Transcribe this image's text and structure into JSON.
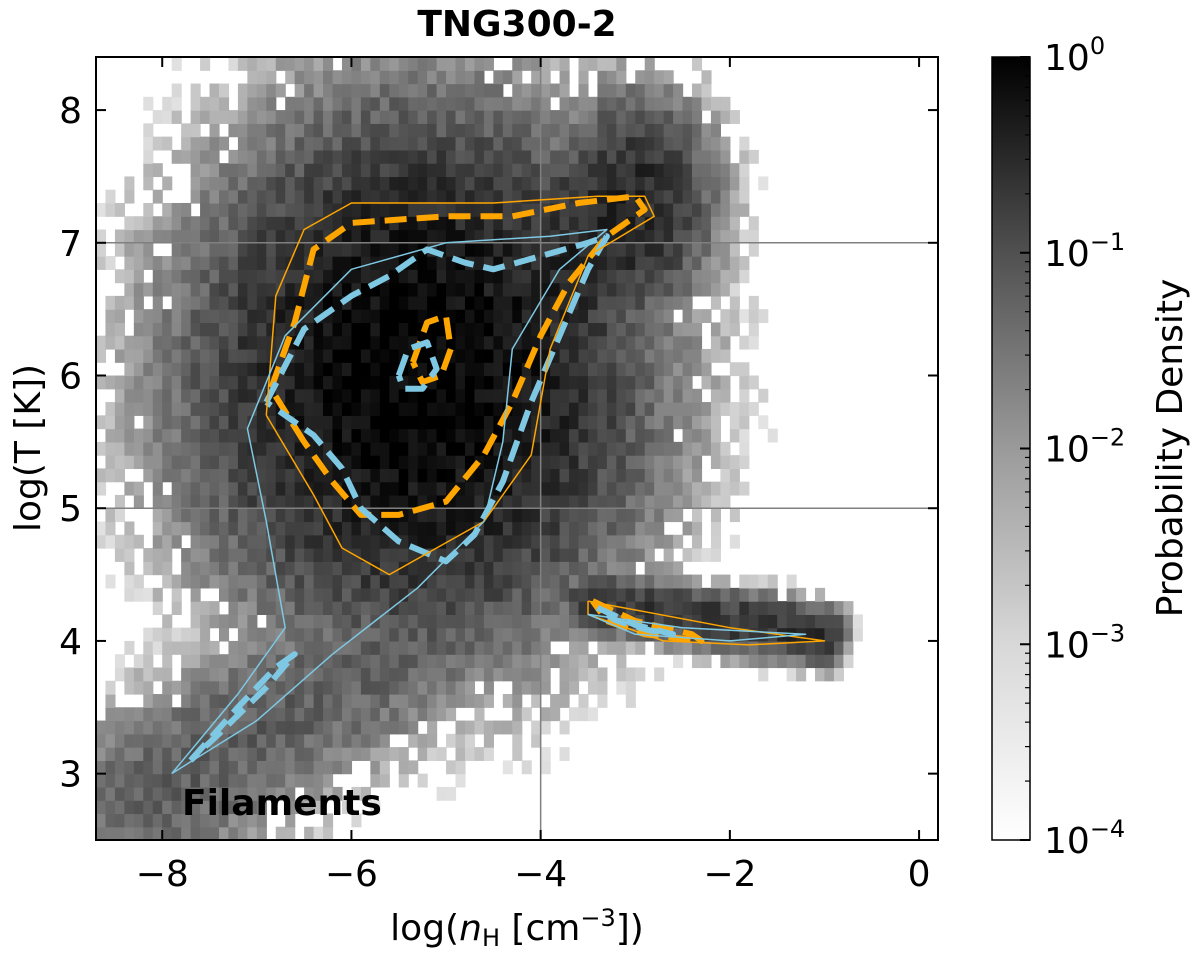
{
  "chart_data": {
    "type": "heatmap",
    "title": "TNG300-2",
    "xlabel": "log(n_H [cm^-3])",
    "ylabel": "log(T [K])",
    "xlim": [
      -8.7,
      0.2
    ],
    "ylim": [
      2.5,
      8.4
    ],
    "x_ticks": [
      -8,
      -6,
      -4,
      -2,
      0
    ],
    "x_tick_labels": [
      "−8",
      "−6",
      "−4",
      "−2",
      "0"
    ],
    "y_ticks": [
      3,
      4,
      5,
      6,
      7,
      8
    ],
    "y_tick_labels": [
      "3",
      "4",
      "5",
      "6",
      "7",
      "8"
    ],
    "reference_lines": {
      "x": [
        -4
      ],
      "y": [
        5,
        7
      ]
    },
    "annotation": "Filaments",
    "colorbar": {
      "label": "Probability Density",
      "scale": "log",
      "range": [
        0.0001,
        1
      ],
      "ticks": [
        {
          "value": 1,
          "base": "10",
          "exp": "0"
        },
        {
          "value": 0.1,
          "base": "10",
          "exp": "−1"
        },
        {
          "value": 0.01,
          "base": "10",
          "exp": "−2"
        },
        {
          "value": 0.001,
          "base": "10",
          "exp": "−3"
        },
        {
          "value": 0.0001,
          "base": "10",
          "exp": "−4"
        }
      ]
    },
    "heatmap": {
      "description": "2D histogram of gas phase density; bin size 0.1 dex in x and y",
      "bin_size": 0.1,
      "components": [
        {
          "name": "hot-core",
          "center": [
            -5.3,
            6.0
          ],
          "spread": [
            0.9,
            0.75
          ],
          "peak": 1.0
        },
        {
          "name": "whim-arm",
          "from": [
            -6.0,
            5.2
          ],
          "to": [
            -3.0,
            7.3
          ],
          "width": 0.35,
          "peak": 0.25
        },
        {
          "name": "upper-band",
          "from": [
            -6.3,
            7.1
          ],
          "to": [
            -3.0,
            7.3
          ],
          "width": 0.2,
          "peak": 0.12
        },
        {
          "name": "cool-diffuse-arm",
          "from": [
            -8.2,
            2.8
          ],
          "to": [
            -4.2,
            4.6
          ],
          "width": 0.35,
          "peak": 0.03
        },
        {
          "name": "cool-dense-arm",
          "from": [
            -3.5,
            4.3
          ],
          "to": [
            -1.0,
            4.05
          ],
          "width": 0.1,
          "peak": 0.15
        }
      ]
    },
    "contours": [
      {
        "name": "orange-inner",
        "color": "#FFA500",
        "style": "dashed",
        "level": "inner",
        "points": [
          [
            -5.35,
            6.1
          ],
          [
            -5.2,
            6.4
          ],
          [
            -5.0,
            6.45
          ],
          [
            -4.95,
            6.2
          ],
          [
            -5.05,
            6.0
          ],
          [
            -5.25,
            5.95
          ],
          [
            -5.35,
            6.1
          ]
        ]
      },
      {
        "name": "orange-main",
        "color": "#FFA500",
        "style": "dashed",
        "level": "outer",
        "points": [
          [
            -6.5,
            5.5
          ],
          [
            -6.85,
            5.9
          ],
          [
            -6.6,
            6.4
          ],
          [
            -6.4,
            6.95
          ],
          [
            -6.0,
            7.15
          ],
          [
            -5.0,
            7.2
          ],
          [
            -4.3,
            7.2
          ],
          [
            -3.6,
            7.3
          ],
          [
            -3.0,
            7.35
          ],
          [
            -2.9,
            7.25
          ],
          [
            -3.3,
            7.05
          ],
          [
            -3.7,
            6.7
          ],
          [
            -4.0,
            6.3
          ],
          [
            -4.3,
            5.8
          ],
          [
            -4.6,
            5.4
          ],
          [
            -5.0,
            5.05
          ],
          [
            -5.5,
            4.95
          ],
          [
            -5.9,
            4.95
          ],
          [
            -6.2,
            5.2
          ],
          [
            -6.5,
            5.5
          ]
        ]
      },
      {
        "name": "orange-cold-band",
        "color": "#FFA500",
        "style": "dashed",
        "level": "outer",
        "points": [
          [
            -3.45,
            4.3
          ],
          [
            -3.0,
            4.15
          ],
          [
            -2.4,
            4.05
          ],
          [
            -2.3,
            4.0
          ],
          [
            -2.9,
            4.05
          ],
          [
            -3.3,
            4.15
          ],
          [
            -3.45,
            4.3
          ]
        ]
      },
      {
        "name": "blue-inner",
        "color": "#7EC8E3",
        "style": "dashed",
        "level": "inner",
        "points": [
          [
            -5.5,
            6.0
          ],
          [
            -5.4,
            6.2
          ],
          [
            -5.2,
            6.25
          ],
          [
            -5.1,
            6.05
          ],
          [
            -5.25,
            5.9
          ],
          [
            -5.45,
            5.9
          ],
          [
            -5.5,
            6.0
          ]
        ]
      },
      {
        "name": "blue-main",
        "color": "#7EC8E3",
        "style": "dashed",
        "level": "outer",
        "points": [
          [
            -6.9,
            5.8
          ],
          [
            -6.5,
            6.35
          ],
          [
            -6.0,
            6.6
          ],
          [
            -5.6,
            6.75
          ],
          [
            -5.2,
            6.95
          ],
          [
            -4.8,
            6.85
          ],
          [
            -4.5,
            6.8
          ],
          [
            -4.0,
            6.9
          ],
          [
            -3.5,
            7.0
          ],
          [
            -3.3,
            7.05
          ],
          [
            -3.5,
            6.8
          ],
          [
            -3.8,
            6.3
          ],
          [
            -4.1,
            5.8
          ],
          [
            -4.4,
            5.2
          ],
          [
            -4.7,
            4.8
          ],
          [
            -5.0,
            4.6
          ],
          [
            -5.5,
            4.75
          ],
          [
            -5.9,
            5.0
          ],
          [
            -6.1,
            5.3
          ],
          [
            -6.4,
            5.55
          ],
          [
            -6.9,
            5.8
          ]
        ]
      },
      {
        "name": "blue-lower-arm",
        "color": "#7EC8E3",
        "style": "dashed",
        "level": "outer",
        "points": [
          [
            -7.7,
            3.1
          ],
          [
            -7.2,
            3.5
          ],
          [
            -6.8,
            3.8
          ],
          [
            -6.6,
            3.9
          ],
          [
            -6.9,
            3.65
          ],
          [
            -7.4,
            3.3
          ],
          [
            -7.7,
            3.1
          ]
        ]
      },
      {
        "name": "blue-cold-band",
        "color": "#7EC8E3",
        "style": "dashed",
        "level": "outer",
        "points": [
          [
            -3.4,
            4.25
          ],
          [
            -3.0,
            4.12
          ],
          [
            -2.6,
            4.05
          ],
          [
            -2.85,
            4.08
          ],
          [
            -3.2,
            4.15
          ],
          [
            -3.4,
            4.25
          ]
        ]
      },
      {
        "name": "orange-outer-thin",
        "color": "#FFA500",
        "style": "solid",
        "level": "outermost",
        "points": [
          [
            -6.9,
            5.7
          ],
          [
            -6.8,
            6.6
          ],
          [
            -6.5,
            7.1
          ],
          [
            -6.0,
            7.3
          ],
          [
            -4.5,
            7.3
          ],
          [
            -3.4,
            7.35
          ],
          [
            -2.9,
            7.35
          ],
          [
            -2.8,
            7.2
          ],
          [
            -3.5,
            6.9
          ],
          [
            -3.9,
            6.2
          ],
          [
            -4.1,
            5.4
          ],
          [
            -4.6,
            4.9
          ],
          [
            -5.1,
            4.7
          ],
          [
            -5.6,
            4.5
          ],
          [
            -6.1,
            4.7
          ],
          [
            -6.4,
            5.1
          ],
          [
            -6.9,
            5.7
          ]
        ]
      },
      {
        "name": "orange-outer-cold-thin",
        "color": "#FFA500",
        "style": "solid",
        "level": "outermost",
        "points": [
          [
            -3.5,
            4.3
          ],
          [
            -2.0,
            4.1
          ],
          [
            -1.0,
            4.0
          ],
          [
            -1.8,
            3.97
          ],
          [
            -2.7,
            4.0
          ],
          [
            -3.5,
            4.2
          ],
          [
            -3.5,
            4.3
          ]
        ]
      },
      {
        "name": "blue-outer-thin",
        "color": "#7EC8E3",
        "style": "solid",
        "level": "outermost",
        "points": [
          [
            -7.9,
            3.0
          ],
          [
            -7.2,
            3.6
          ],
          [
            -6.7,
            4.1
          ],
          [
            -6.9,
            4.9
          ],
          [
            -7.1,
            5.6
          ],
          [
            -6.7,
            6.3
          ],
          [
            -6.0,
            6.8
          ],
          [
            -5.0,
            7.0
          ],
          [
            -3.9,
            7.05
          ],
          [
            -3.3,
            7.1
          ],
          [
            -3.8,
            6.8
          ],
          [
            -4.3,
            6.2
          ],
          [
            -4.4,
            5.5
          ],
          [
            -4.6,
            4.9
          ],
          [
            -5.3,
            4.4
          ],
          [
            -6.2,
            3.9
          ],
          [
            -7.0,
            3.4
          ],
          [
            -7.9,
            3.0
          ]
        ]
      },
      {
        "name": "blue-outer-cold-thin",
        "color": "#7EC8E3",
        "style": "solid",
        "level": "outermost",
        "points": [
          [
            -3.5,
            4.2
          ],
          [
            -2.5,
            4.1
          ],
          [
            -1.2,
            4.05
          ],
          [
            -2.0,
            4.0
          ],
          [
            -3.0,
            4.05
          ],
          [
            -3.5,
            4.2
          ]
        ]
      }
    ]
  }
}
